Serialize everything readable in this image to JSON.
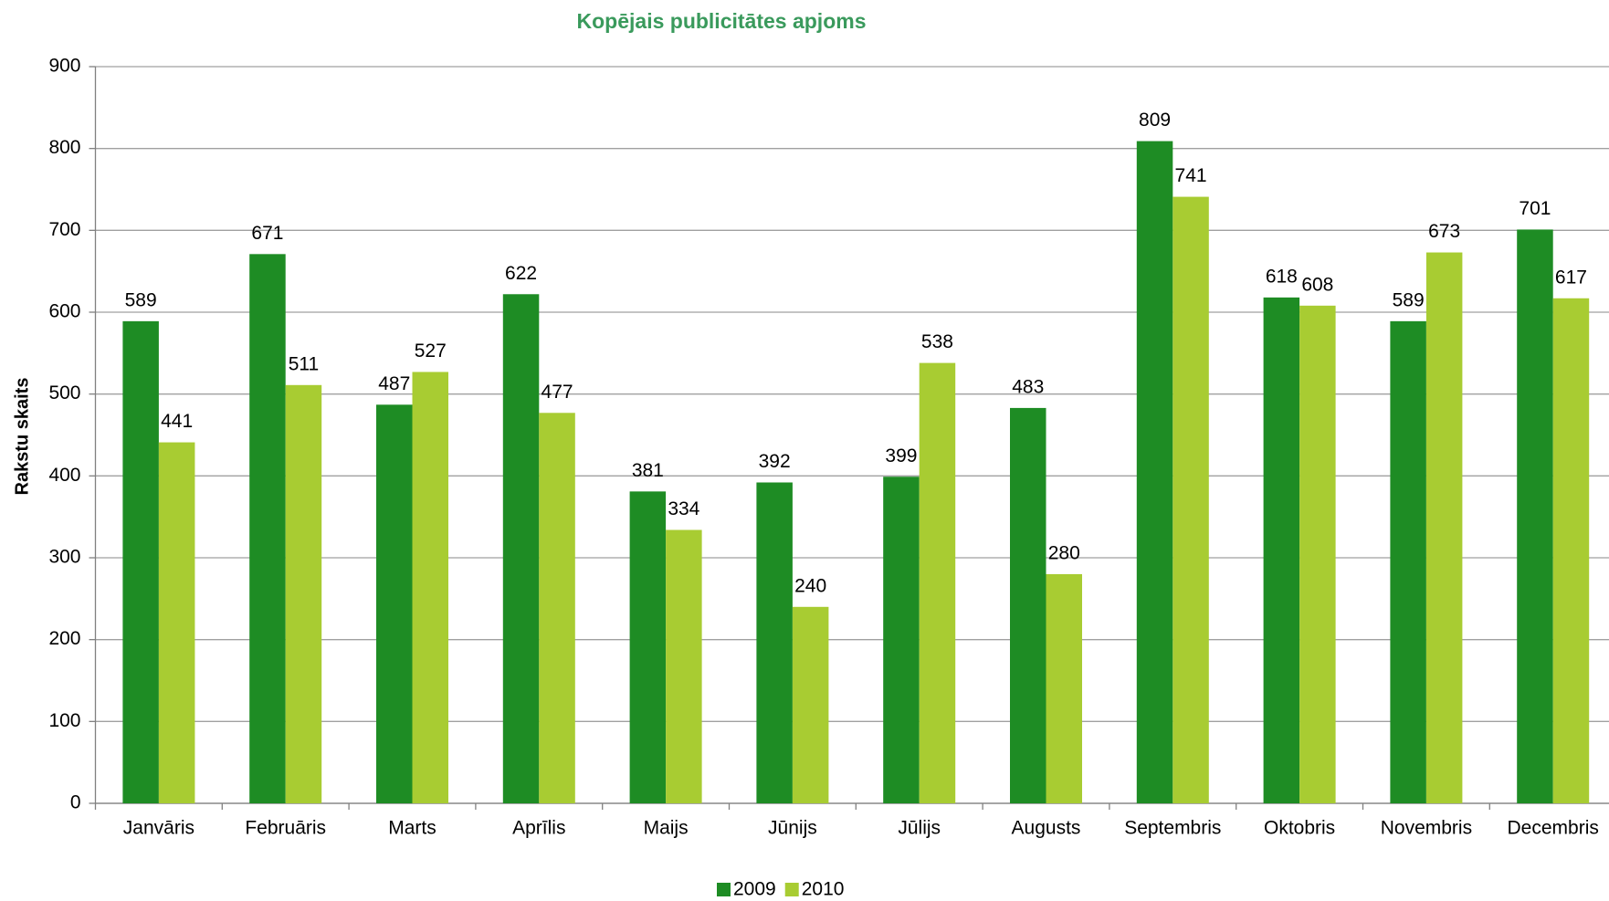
{
  "chart_data": {
    "type": "bar",
    "title": "Kopējais publicitātes apjoms",
    "y_label": "Rakstu skaits",
    "categories": [
      "Janvāris",
      "Februāris",
      "Marts",
      "Aprīlis",
      "Maijs",
      "Jūnijs",
      "Jūlijs",
      "Augusts",
      "Septembris",
      "Oktobris",
      "Novembris",
      "Decembris"
    ],
    "series": [
      {
        "name": "2009",
        "color": "#1e8c24",
        "values": [
          589,
          671,
          487,
          622,
          381,
          392,
          399,
          483,
          809,
          618,
          589,
          701
        ]
      },
      {
        "name": "2010",
        "color": "#a8cc32",
        "values": [
          441,
          511,
          527,
          477,
          334,
          240,
          538,
          280,
          741,
          608,
          673,
          617
        ]
      }
    ],
    "ylim": [
      0,
      900
    ],
    "yticks": [
      0,
      100,
      200,
      300,
      400,
      500,
      600,
      700,
      800,
      900
    ],
    "grid": true,
    "legend": "bottom"
  }
}
